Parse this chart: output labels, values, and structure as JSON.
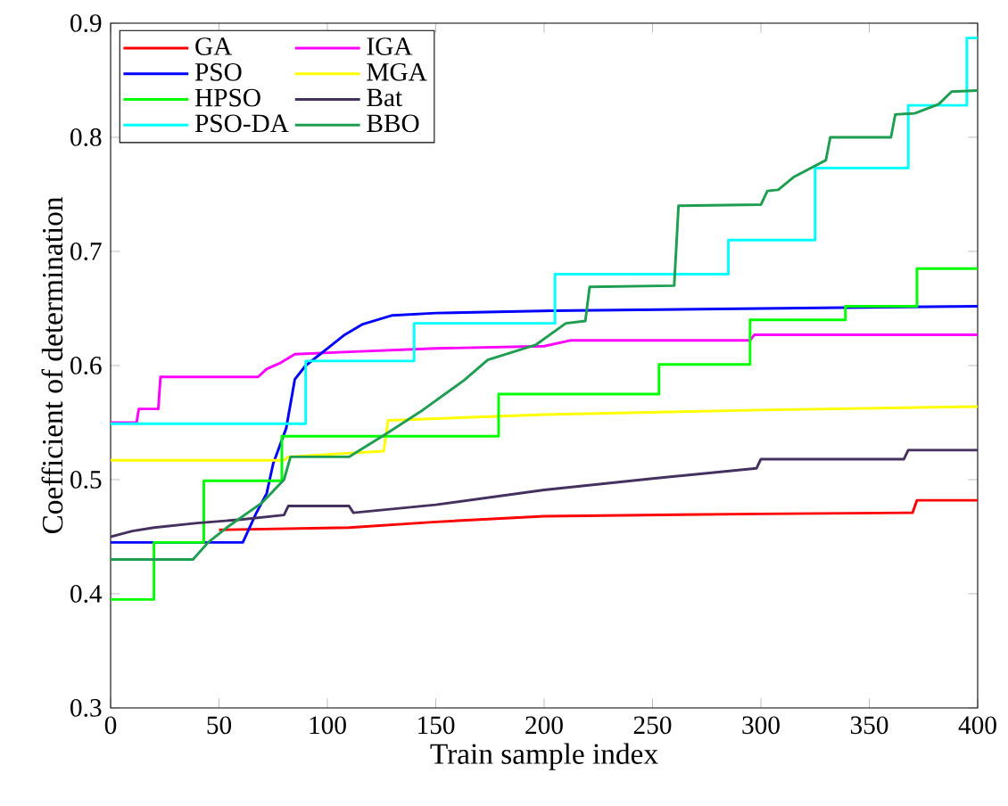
{
  "chart_data": {
    "type": "line",
    "xlabel": "Train sample index",
    "ylabel": "Coefficient of determination",
    "xlim": [
      0,
      400
    ],
    "ylim": [
      0.3,
      0.9
    ],
    "xticks": [
      0,
      50,
      100,
      150,
      200,
      250,
      300,
      350,
      400
    ],
    "yticks": [
      0.3,
      0.4,
      0.5,
      0.6,
      0.7,
      0.8,
      0.9
    ],
    "legend": "top left",
    "grid": false,
    "marker": "none",
    "line_style": "solid",
    "series": [
      {
        "name": "GA",
        "color": "#ff0000",
        "x": [
          50,
          110,
          150,
          200,
          300,
          370,
          372,
          400
        ],
        "values": [
          0.456,
          0.458,
          0.463,
          0.468,
          0.47,
          0.471,
          0.482,
          0.482
        ]
      },
      {
        "name": "PSO",
        "color": "#0000ff",
        "x": [
          0,
          61,
          67,
          72,
          75,
          81,
          85,
          90,
          100,
          108,
          116,
          130,
          150,
          204,
          300,
          400
        ],
        "values": [
          0.445,
          0.445,
          0.47,
          0.488,
          0.514,
          0.545,
          0.588,
          0.6,
          0.615,
          0.627,
          0.636,
          0.644,
          0.646,
          0.648,
          0.65,
          0.652
        ]
      },
      {
        "name": "HPSO",
        "color": "#00ff00",
        "x": [
          0,
          20,
          20,
          43,
          43,
          79,
          79,
          179,
          179,
          253,
          253,
          295,
          295,
          339,
          339,
          372,
          372,
          400
        ],
        "values": [
          0.395,
          0.395,
          0.445,
          0.445,
          0.499,
          0.499,
          0.538,
          0.538,
          0.575,
          0.575,
          0.601,
          0.601,
          0.64,
          0.64,
          0.652,
          0.652,
          0.685,
          0.685
        ]
      },
      {
        "name": "PSO-DA",
        "color": "#00ffff",
        "x": [
          0,
          90,
          90,
          140,
          140,
          205,
          205,
          285,
          285,
          325,
          325,
          368,
          368,
          395,
          395,
          400
        ],
        "values": [
          0.549,
          0.549,
          0.604,
          0.604,
          0.637,
          0.637,
          0.68,
          0.68,
          0.71,
          0.71,
          0.773,
          0.773,
          0.828,
          0.828,
          0.887,
          0.887
        ]
      },
      {
        "name": "IGA",
        "color": "#ff00ff",
        "x": [
          0,
          12,
          13,
          22,
          23,
          68,
          72,
          78,
          85,
          110,
          150,
          200,
          212,
          295,
          297,
          400
        ],
        "values": [
          0.55,
          0.55,
          0.562,
          0.562,
          0.59,
          0.59,
          0.597,
          0.602,
          0.61,
          0.612,
          0.615,
          0.617,
          0.622,
          0.622,
          0.627,
          0.627
        ]
      },
      {
        "name": "MGA",
        "color": "#ffff00",
        "x": [
          0,
          80,
          82,
          126,
          128,
          200,
          300,
          400
        ],
        "values": [
          0.517,
          0.517,
          0.52,
          0.525,
          0.552,
          0.557,
          0.561,
          0.564
        ]
      },
      {
        "name": "Bat",
        "color": "#45315f",
        "x": [
          0,
          10,
          20,
          40,
          60,
          80,
          82,
          110,
          112,
          150,
          200,
          250,
          298,
          300,
          366,
          368,
          400
        ],
        "values": [
          0.45,
          0.455,
          0.458,
          0.462,
          0.465,
          0.469,
          0.477,
          0.477,
          0.471,
          0.478,
          0.491,
          0.501,
          0.51,
          0.518,
          0.518,
          0.526,
          0.526
        ]
      },
      {
        "name": "BBO",
        "color": "#1e9e50",
        "x": [
          0,
          38,
          45,
          55,
          70,
          80,
          83,
          110,
          127,
          144,
          163,
          174,
          196,
          210,
          219,
          221,
          260,
          262,
          300,
          303,
          308,
          315,
          330,
          332,
          360,
          362,
          371,
          382,
          388,
          400
        ],
        "values": [
          0.43,
          0.43,
          0.445,
          0.46,
          0.48,
          0.5,
          0.52,
          0.52,
          0.54,
          0.561,
          0.587,
          0.605,
          0.618,
          0.637,
          0.639,
          0.669,
          0.67,
          0.74,
          0.741,
          0.753,
          0.754,
          0.765,
          0.78,
          0.8,
          0.8,
          0.82,
          0.821,
          0.829,
          0.84,
          0.841
        ]
      }
    ]
  }
}
